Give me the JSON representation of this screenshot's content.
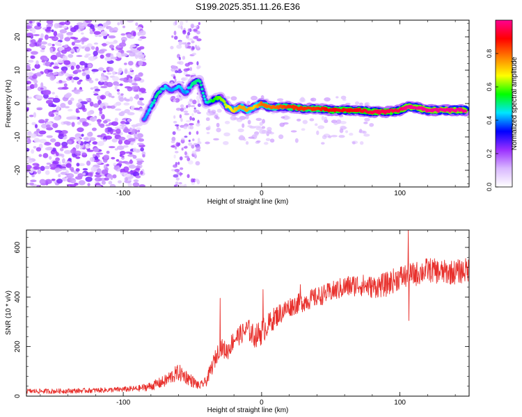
{
  "figure": {
    "title": "S199.2025.351.11.26.E36"
  },
  "colorbar": {
    "label": "Normalized spectral amplitude",
    "ticks": [
      "0.0",
      "0.2",
      "0.4",
      "0.6",
      "0.8"
    ],
    "tick_values": [
      0.0,
      0.2,
      0.4,
      0.6,
      0.8
    ],
    "range": [
      0,
      1
    ],
    "colors": [
      "#ffffff",
      "#d9b8ff",
      "#9b30ff",
      "#0000ff",
      "#00e5ff",
      "#00ff00",
      "#ffff00",
      "#ff8000",
      "#ff0000",
      "#ff0090"
    ]
  },
  "chart_data": [
    {
      "type": "heatmap",
      "title": "S199.2025.351.11.26.E36",
      "xlabel": "Height of straight line (km)",
      "ylabel": "Frequency (Hz)",
      "xlim": [
        -170,
        150
      ],
      "ylim": [
        -25,
        25
      ],
      "x_ticks": [
        -100,
        0,
        100
      ],
      "x_tick_labels": [
        "-100",
        "0",
        "100"
      ],
      "y_ticks": [
        -20,
        -10,
        0,
        10,
        20
      ],
      "y_tick_labels": [
        "-20",
        "-10",
        "0",
        "10",
        "20"
      ],
      "grid": false,
      "ridge": {
        "x": [
          -85,
          -80,
          -75,
          -70,
          -65,
          -60,
          -55,
          -50,
          -45,
          -40,
          -35,
          -30,
          -25,
          -20,
          -15,
          -10,
          -5,
          0,
          5,
          10,
          20,
          30,
          40,
          50,
          60,
          70,
          80,
          90,
          100,
          105,
          110,
          120,
          130,
          140,
          148
        ],
        "freq": [
          -5,
          -1,
          3,
          5,
          4,
          5,
          3,
          6,
          7,
          0,
          1,
          2,
          -1,
          -2,
          -1,
          -2,
          -1,
          0,
          -1,
          -1,
          -1,
          -1.5,
          -1.5,
          -2,
          -2,
          -2,
          -2.5,
          -2.5,
          -2,
          -1,
          -1,
          -2,
          -2,
          -2,
          -2
        ],
        "amplitude": [
          0.4,
          0.45,
          0.5,
          0.45,
          0.4,
          0.45,
          0.4,
          0.5,
          0.5,
          0.45,
          0.55,
          0.6,
          0.65,
          0.7,
          0.75,
          0.75,
          0.7,
          0.8,
          0.8,
          0.8,
          0.85,
          0.85,
          0.85,
          0.9,
          0.9,
          0.9,
          0.95,
          0.95,
          0.95,
          1.0,
          1.0,
          1.0,
          1.0,
          1.0,
          1.0
        ]
      },
      "noise_region": {
        "x_range": [
          -170,
          -85
        ],
        "second_band": [
          -65,
          -45
        ],
        "amplitude_range": [
          0.05,
          0.25
        ]
      }
    },
    {
      "type": "line",
      "xlabel": "Height of straight line (km)",
      "ylabel": "SNR (10 * v/v)",
      "xlim": [
        -170,
        150
      ],
      "ylim": [
        0,
        670
      ],
      "x_ticks": [
        -100,
        0,
        100
      ],
      "x_tick_labels": [
        "-100",
        "0",
        "100"
      ],
      "y_ticks": [
        0,
        200,
        400,
        600
      ],
      "y_tick_labels": [
        "0",
        "200",
        "400",
        "600"
      ],
      "grid": false,
      "series": [
        {
          "name": "SNR",
          "color": "#e8302c",
          "x": [
            -170,
            -150,
            -130,
            -110,
            -90,
            -80,
            -70,
            -65,
            -60,
            -55,
            -50,
            -45,
            -40,
            -35,
            -30,
            -25,
            -20,
            -15,
            -10,
            -5,
            0,
            5,
            10,
            20,
            30,
            40,
            50,
            60,
            70,
            80,
            90,
            100,
            110,
            120,
            130,
            140,
            150
          ],
          "y": [
            20,
            20,
            22,
            25,
            30,
            40,
            60,
            80,
            95,
            80,
            60,
            40,
            60,
            130,
            200,
            180,
            230,
            250,
            270,
            240,
            260,
            290,
            320,
            360,
            380,
            400,
            420,
            440,
            450,
            440,
            450,
            480,
            490,
            510,
            500,
            500,
            510
          ],
          "noise": [
            10,
            10,
            10,
            10,
            12,
            18,
            25,
            30,
            35,
            30,
            25,
            15,
            20,
            35,
            35,
            40,
            40,
            40,
            45,
            45,
            55,
            45,
            45,
            40,
            40,
            40,
            40,
            45,
            45,
            45,
            50,
            50,
            50,
            50,
            50,
            50,
            50
          ],
          "spikes": [
            {
              "x": -30,
              "y": 395
            },
            {
              "x": 1,
              "y": 430
            },
            {
              "x": 28,
              "y": 450
            },
            {
              "x": 106,
              "y": 670
            },
            {
              "x": 106.5,
              "y": 305
            }
          ]
        }
      ]
    }
  ]
}
